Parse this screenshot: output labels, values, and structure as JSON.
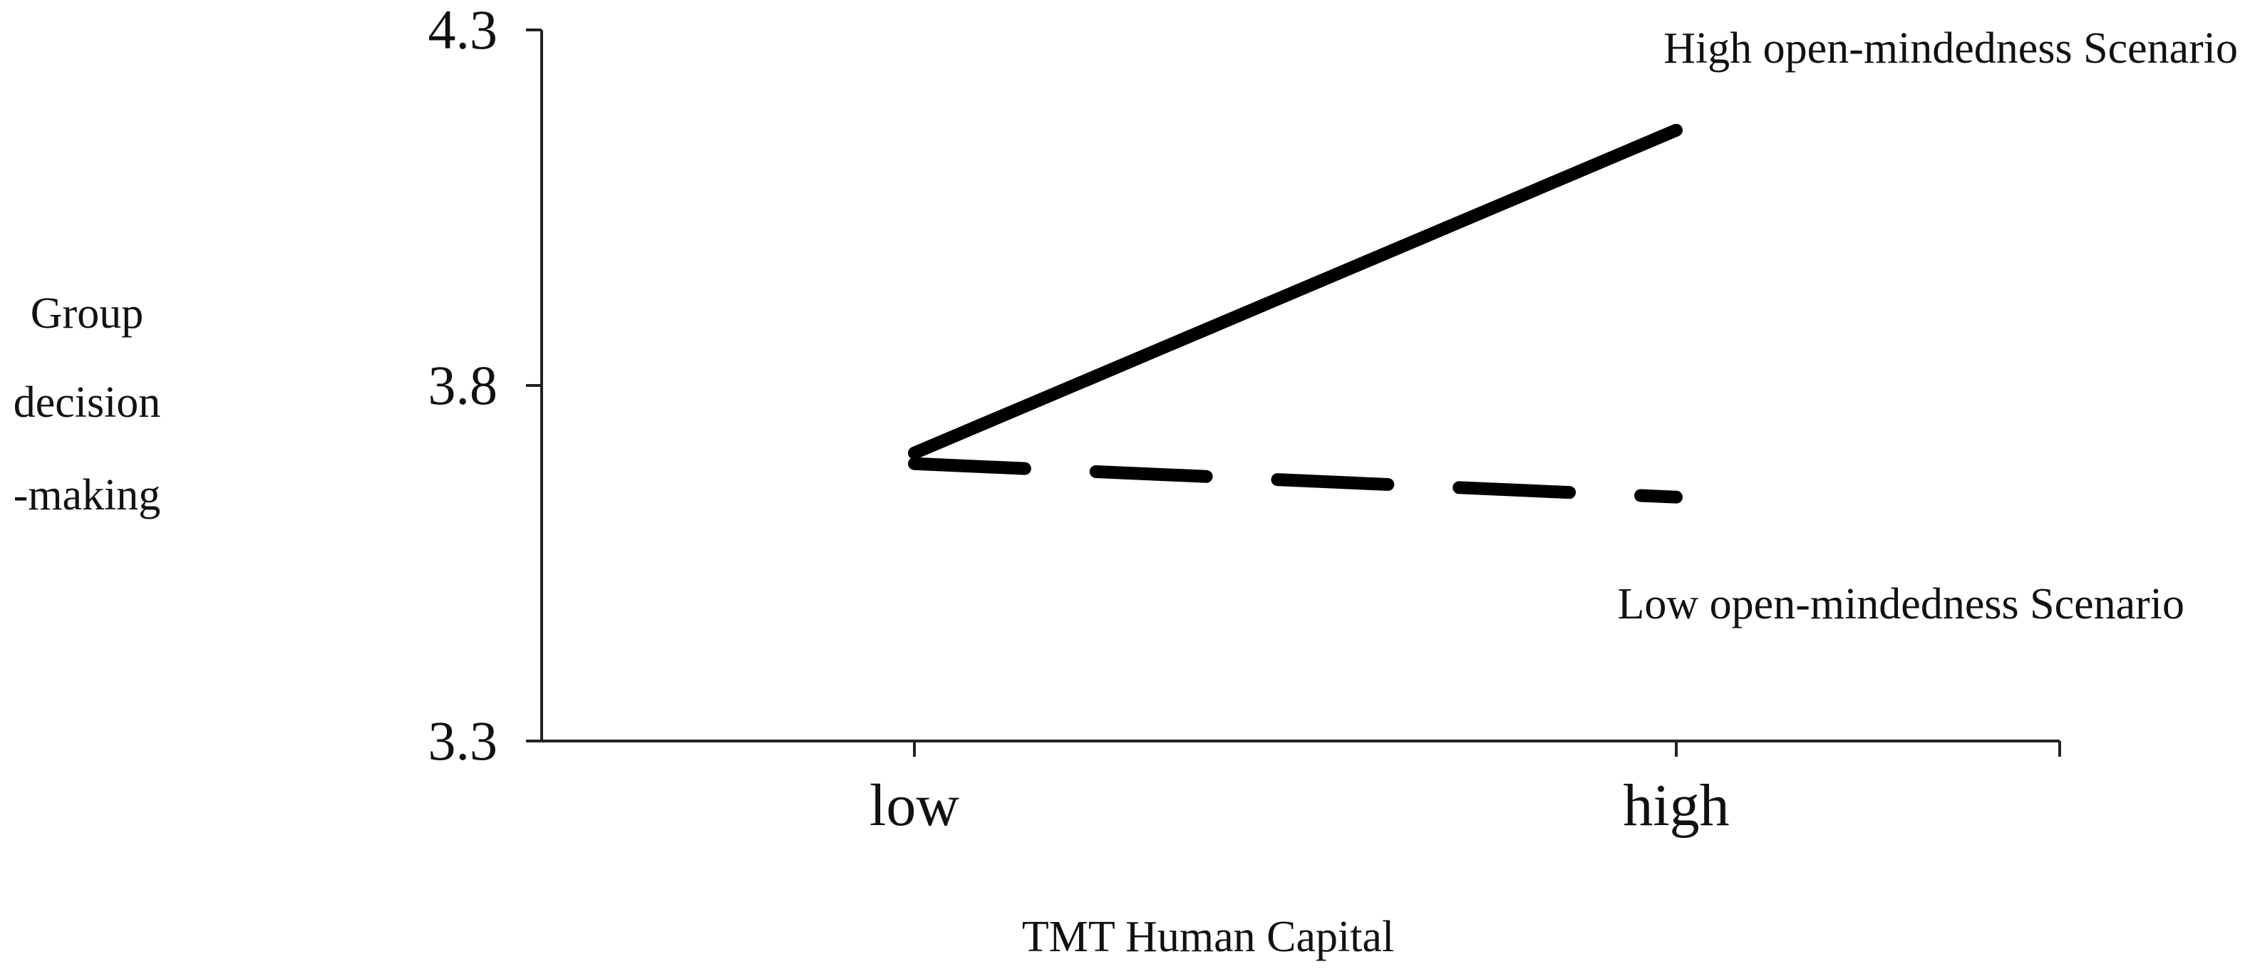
{
  "chart_data": {
    "type": "line",
    "title": "",
    "xlabel": "TMT Human Capital",
    "ylabel_lines": [
      "Group",
      "decision",
      "-making"
    ],
    "categories": [
      "low",
      "high"
    ],
    "y_ticks": [
      "4.3",
      "3.8",
      "3.3"
    ],
    "ylim": [
      3.3,
      4.3
    ],
    "grid": false,
    "series": [
      {
        "name": "High open-mindedness Scenario",
        "values": [
          3.705,
          4.159
        ],
        "line_style": "solid",
        "color": "#000000"
      },
      {
        "name": "Low open-mindedness Scenario",
        "values": [
          3.69,
          3.643
        ],
        "line_style": "dashed",
        "color": "#000000"
      }
    ]
  }
}
